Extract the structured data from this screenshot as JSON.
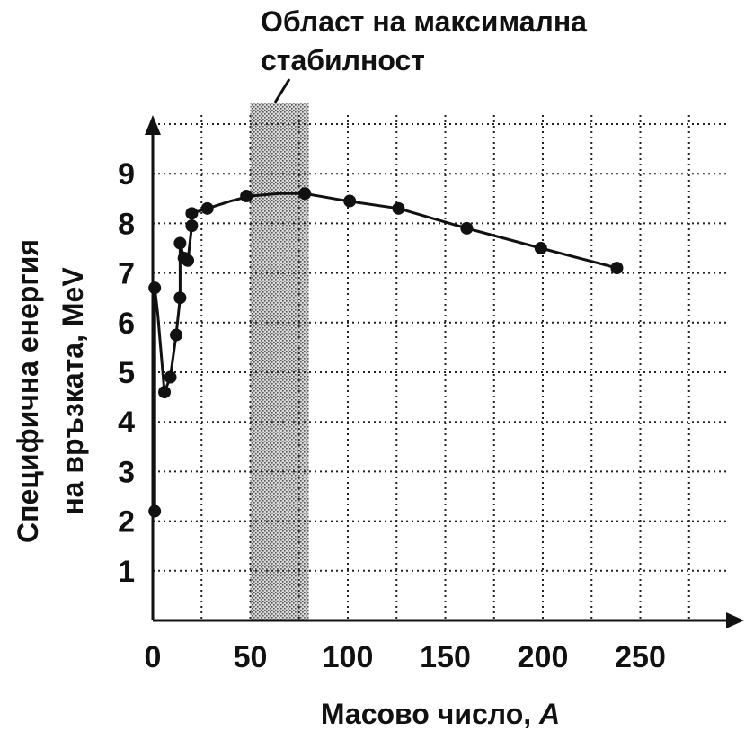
{
  "chart_data": {
    "type": "line",
    "annotation": {
      "line1": "Област на максимална",
      "line2": "стабилност",
      "region_x": [
        50,
        80
      ]
    },
    "xlabel_main": "Масово число, ",
    "xlabel_var": "A",
    "ylabel_line1": "Специфична енергия",
    "ylabel_line2": "на връзката, MeV",
    "xlim": [
      0,
      290
    ],
    "ylim": [
      0,
      10
    ],
    "x_ticks": [
      {
        "value": 0,
        "label": "0"
      },
      {
        "value": 50,
        "label": "50"
      },
      {
        "value": 100,
        "label": "100"
      },
      {
        "value": 150,
        "label": "150"
      },
      {
        "value": 200,
        "label": "200"
      },
      {
        "value": 250,
        "label": "250"
      }
    ],
    "y_ticks": [
      {
        "value": 1,
        "label": "1"
      },
      {
        "value": 2,
        "label": "2"
      },
      {
        "value": 3,
        "label": "3"
      },
      {
        "value": 4,
        "label": "4"
      },
      {
        "value": 5,
        "label": "5"
      },
      {
        "value": 6,
        "label": "6"
      },
      {
        "value": 7,
        "label": "7"
      },
      {
        "value": 8,
        "label": "8"
      },
      {
        "value": 9,
        "label": "9"
      }
    ],
    "grid": true,
    "series": [
      {
        "points": [
          {
            "x": 1,
            "y": 2.2
          },
          {
            "x": 1,
            "y": 6.7
          },
          {
            "x": 6,
            "y": 4.6
          },
          {
            "x": 9,
            "y": 4.9
          },
          {
            "x": 12,
            "y": 5.75
          },
          {
            "x": 14,
            "y": 6.5
          },
          {
            "x": 14,
            "y": 7.6
          },
          {
            "x": 16,
            "y": 7.3
          },
          {
            "x": 18,
            "y": 7.25
          },
          {
            "x": 20,
            "y": 7.95
          },
          {
            "x": 20,
            "y": 8.2
          },
          {
            "x": 28,
            "y": 8.3
          },
          {
            "x": 48,
            "y": 8.55
          },
          {
            "x": 78,
            "y": 8.6
          },
          {
            "x": 101,
            "y": 8.45
          },
          {
            "x": 126,
            "y": 8.3
          },
          {
            "x": 161,
            "y": 7.9
          },
          {
            "x": 199,
            "y": 7.5
          },
          {
            "x": 238,
            "y": 7.1
          }
        ]
      }
    ],
    "curve": [
      [
        1,
        2.2
      ],
      [
        1,
        6.7
      ],
      [
        2.5,
        6.2
      ],
      [
        6,
        4.6
      ],
      [
        9,
        4.9
      ],
      [
        12,
        5.75
      ],
      [
        14,
        6.5
      ],
      [
        14,
        7.6
      ],
      [
        16,
        7.3
      ],
      [
        18,
        7.25
      ],
      [
        20,
        7.95
      ],
      [
        20,
        8.2
      ],
      [
        28,
        8.3
      ],
      [
        40,
        8.45
      ],
      [
        50,
        8.55
      ],
      [
        65,
        8.6
      ],
      [
        78,
        8.6
      ],
      [
        100,
        8.45
      ],
      [
        126,
        8.3
      ],
      [
        161,
        7.9
      ],
      [
        199,
        7.5
      ],
      [
        238,
        7.1
      ]
    ]
  }
}
